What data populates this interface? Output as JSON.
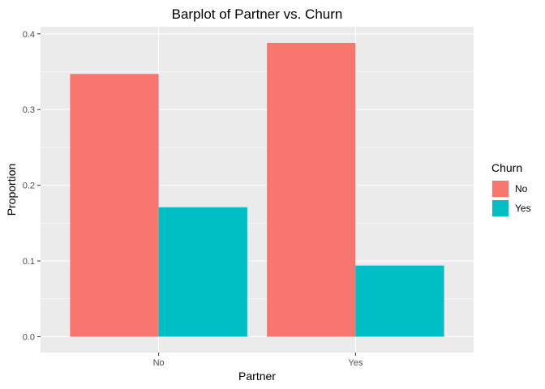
{
  "chart_data": {
    "type": "bar",
    "title": "Barplot of Partner vs. Churn",
    "xlabel": "Partner",
    "ylabel": "Proportion",
    "categories": [
      "No",
      "Yes"
    ],
    "series": [
      {
        "name": "No",
        "values": [
          0.347,
          0.388
        ],
        "color": "#F8766D"
      },
      {
        "name": "Yes",
        "values": [
          0.171,
          0.094
        ],
        "color": "#00BFC4"
      }
    ],
    "ylim": [
      -0.0209,
      0.4094
    ],
    "yticks": [
      "0.0",
      "0.1",
      "0.2",
      "0.3",
      "0.4"
    ],
    "grid": true,
    "legend": {
      "title": "Churn",
      "position": "right"
    },
    "panel_background": "#EBEBEB",
    "grid_color": "#FFFFFF"
  }
}
